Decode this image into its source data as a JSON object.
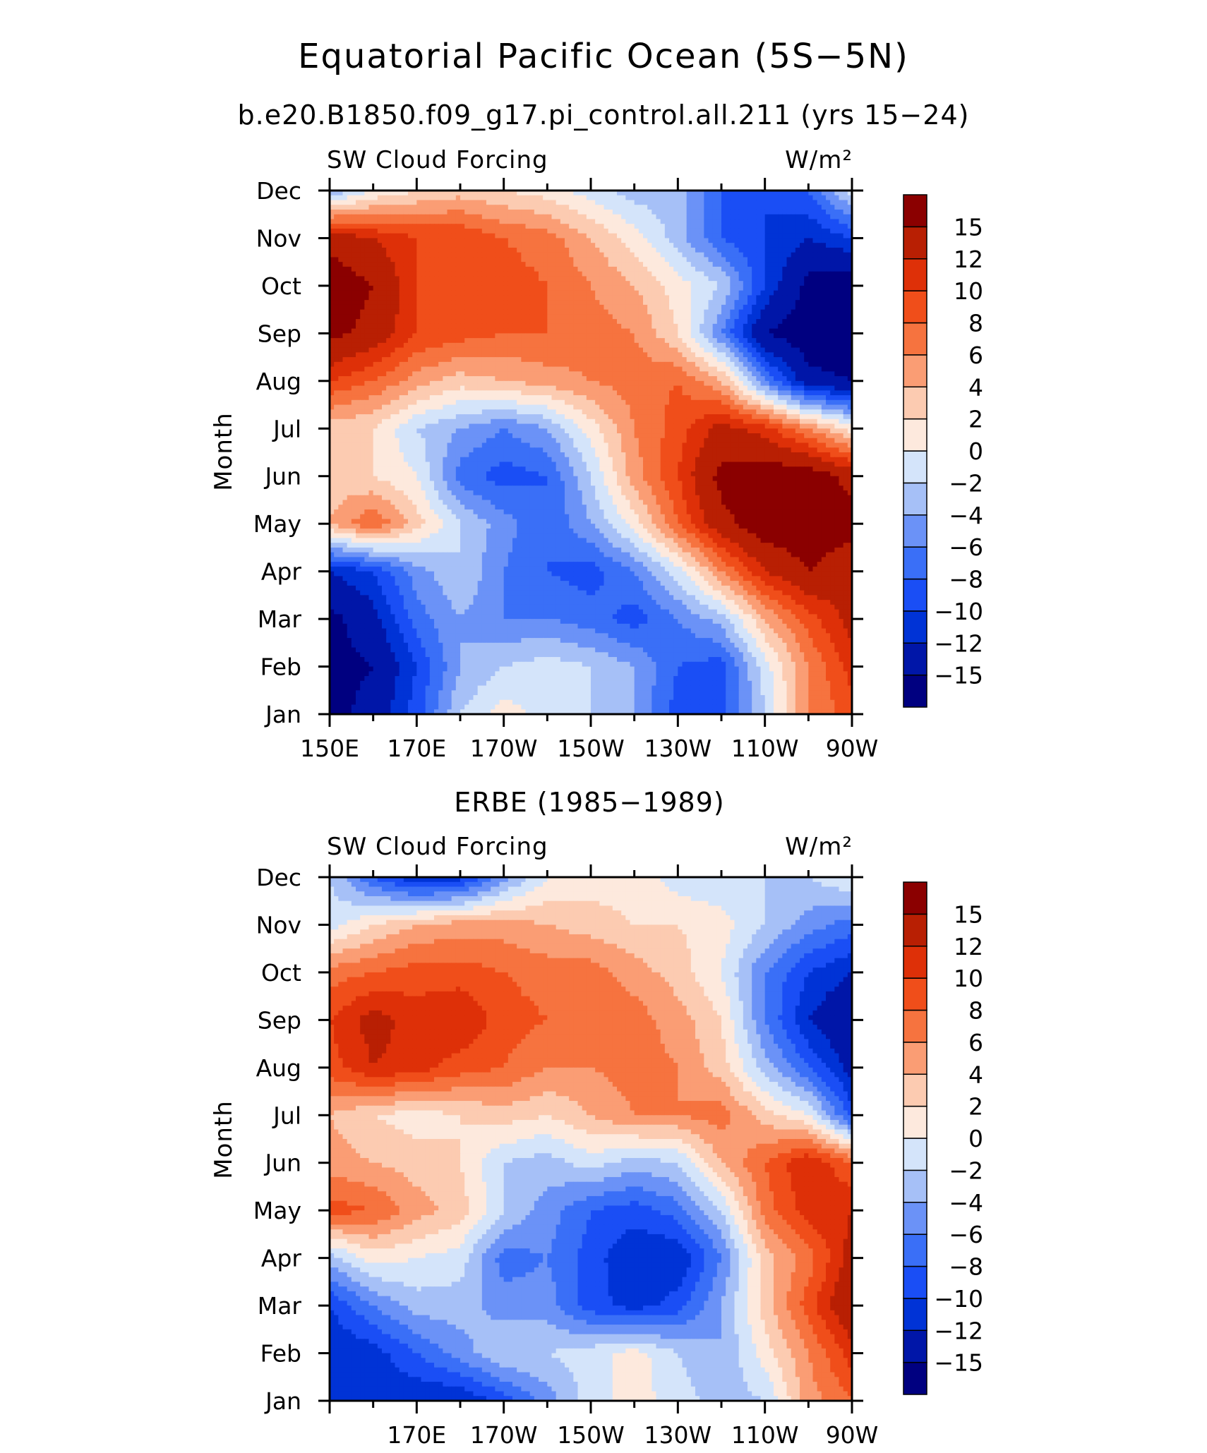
{
  "figure": {
    "title": "Equatorial Pacific Ocean (5S−5N)",
    "subtitle": "b.e20.B1850.f09_g17.pi_control.all.211 (yrs 15−24)"
  },
  "chart_data": [
    {
      "type": "heatmap",
      "panel_title": "",
      "left_label": "SW Cloud Forcing",
      "units": "W/m²",
      "ylabel": "Month",
      "x_ticks": [
        "150E",
        "170E",
        "170W",
        "150W",
        "130W",
        "110W",
        "90W"
      ],
      "x_range_deg_east": [
        150,
        270
      ],
      "y_ticks": [
        "Jan",
        "Feb",
        "Mar",
        "Apr",
        "May",
        "Jun",
        "Jul",
        "Aug",
        "Sep",
        "Oct",
        "Nov",
        "Dec"
      ],
      "x": [
        150,
        160,
        170,
        180,
        190,
        200,
        210,
        220,
        230,
        240,
        250,
        260,
        270
      ],
      "y": [
        "Jan",
        "Feb",
        "Mar",
        "Apr",
        "May",
        "Jun",
        "Jul",
        "Aug",
        "Sep",
        "Oct",
        "Nov",
        "Dec"
      ],
      "z": [
        [
          -16,
          -14,
          -9,
          -2,
          1,
          -1,
          -2,
          -4,
          -9,
          -9,
          -2,
          6,
          9
        ],
        [
          -16,
          -15,
          -10,
          -4,
          -2,
          -1,
          -2,
          -4,
          -8,
          -9,
          -1,
          6,
          11
        ],
        [
          -16,
          -13,
          -7,
          -4,
          -6,
          -6,
          -7,
          -9,
          -6,
          -3,
          4,
          9,
          13
        ],
        [
          -12,
          -10,
          -5,
          -2,
          -6,
          -8,
          -9,
          -6,
          -1,
          6,
          12,
          15,
          13
        ],
        [
          4,
          8,
          3,
          -2,
          -5,
          -8,
          -4,
          1,
          8,
          14,
          17,
          17,
          16
        ],
        [
          3,
          2,
          0,
          -7,
          -9,
          -8,
          -2,
          5,
          10,
          16,
          17,
          17,
          14
        ],
        [
          3,
          2,
          -2,
          -4,
          -6,
          -4,
          1,
          6,
          9,
          13,
          11,
          6,
          1
        ],
        [
          10,
          8,
          5,
          3,
          4,
          5,
          6,
          7,
          8,
          4,
          -6,
          -14,
          -15
        ],
        [
          16,
          14,
          10,
          9,
          8,
          8,
          7,
          6,
          2,
          -6,
          -15,
          -17,
          -17
        ],
        [
          17,
          15,
          10,
          9,
          9,
          8,
          6,
          4,
          1,
          -2,
          -10,
          -16,
          -17
        ],
        [
          14,
          12,
          10,
          10,
          8,
          7,
          4,
          1,
          -3,
          -8,
          -10,
          -12,
          -10
        ],
        [
          -4,
          0,
          2,
          3,
          2,
          1,
          -1,
          -3,
          -3,
          -8,
          -10,
          -8,
          -1
        ]
      ],
      "levels": [
        -15,
        -12,
        -10,
        -8,
        -6,
        -4,
        -2,
        0,
        2,
        4,
        6,
        8,
        10,
        12,
        15
      ],
      "colors": [
        "#000080",
        "#0016a8",
        "#0033d6",
        "#1a4ef5",
        "#3a6ff7",
        "#6b92f7",
        "#a6c0f7",
        "#d4e4fa",
        "#fde9dd",
        "#fccbb1",
        "#fa9d74",
        "#f6733f",
        "#f04e1a",
        "#de3008",
        "#b81f03",
        "#8b0000"
      ],
      "colorbar_labels": [
        "15",
        "12",
        "10",
        "8",
        "6",
        "4",
        "2",
        "0",
        "−2",
        "−4",
        "−6",
        "−8",
        "−10",
        "−12",
        "−15"
      ]
    },
    {
      "type": "heatmap",
      "panel_title": "ERBE (1985−1989)",
      "left_label": "SW Cloud Forcing",
      "units": "W/m²",
      "ylabel": "Month",
      "x_ticks": [
        "170E",
        "170W",
        "150W",
        "130W",
        "110W",
        "90W"
      ],
      "x_range_deg_east": [
        150,
        270
      ],
      "y_ticks": [
        "Jan",
        "Feb",
        "Mar",
        "Apr",
        "May",
        "Jun",
        "Jul",
        "Aug",
        "Sep",
        "Oct",
        "Nov",
        "Dec"
      ],
      "x": [
        150,
        160,
        170,
        180,
        190,
        200,
        210,
        220,
        230,
        240,
        250,
        260,
        270
      ],
      "y": [
        "Jan",
        "Feb",
        "Mar",
        "Apr",
        "May",
        "Jun",
        "Jul",
        "Aug",
        "Sep",
        "Oct",
        "Nov",
        "Dec"
      ],
      "z": [
        [
          -10,
          -11,
          -12,
          -12,
          -9,
          -5,
          -1,
          1,
          -1,
          -3,
          -2,
          5,
          8
        ],
        [
          -12,
          -11,
          -8,
          -5,
          -2,
          -2,
          -1,
          1,
          -2,
          -4,
          1,
          6,
          11
        ],
        [
          -10,
          -6,
          -3,
          -3,
          -5,
          -5,
          -9,
          -11,
          -9,
          -4,
          3,
          9,
          15
        ],
        [
          -3,
          1,
          0,
          -1,
          -7,
          -6,
          -9,
          -12,
          -12,
          -6,
          3,
          7,
          13
        ],
        [
          9,
          8,
          5,
          3,
          -2,
          -5,
          -8,
          -9,
          -7,
          -2,
          7,
          11,
          12
        ],
        [
          5,
          4,
          3,
          2,
          -2,
          -3,
          -1,
          -3,
          -2,
          4,
          8,
          12,
          8
        ],
        [
          4,
          2,
          1,
          2,
          3,
          2,
          4,
          6,
          6,
          7,
          3,
          0,
          -9
        ],
        [
          9,
          12,
          11,
          9,
          8,
          6,
          6,
          7,
          6,
          3,
          -3,
          -8,
          -13
        ],
        [
          10,
          13,
          11,
          12,
          9,
          8,
          8,
          7,
          5,
          2,
          -6,
          -12,
          -15
        ],
        [
          7,
          8,
          9,
          9,
          8,
          7,
          7,
          5,
          3,
          0,
          -6,
          -10,
          -12
        ],
        [
          -1,
          2,
          4,
          5,
          5,
          4,
          3,
          2,
          2,
          1,
          -2,
          -5,
          -7
        ],
        [
          -2,
          -8,
          -12,
          -11,
          -5,
          0,
          1,
          1,
          -1,
          -2,
          -2,
          -2,
          0
        ]
      ],
      "levels": [
        -15,
        -12,
        -10,
        -8,
        -6,
        -4,
        -2,
        0,
        2,
        4,
        6,
        8,
        10,
        12,
        15
      ],
      "colors": [
        "#000080",
        "#0016a8",
        "#0033d6",
        "#1a4ef5",
        "#3a6ff7",
        "#6b92f7",
        "#a6c0f7",
        "#d4e4fa",
        "#fde9dd",
        "#fccbb1",
        "#fa9d74",
        "#f6733f",
        "#f04e1a",
        "#de3008",
        "#b81f03",
        "#8b0000"
      ],
      "colorbar_labels": [
        "15",
        "12",
        "10",
        "8",
        "6",
        "4",
        "2",
        "0",
        "−2",
        "−4",
        "−6",
        "−8",
        "−10",
        "−12",
        "−15"
      ]
    }
  ]
}
